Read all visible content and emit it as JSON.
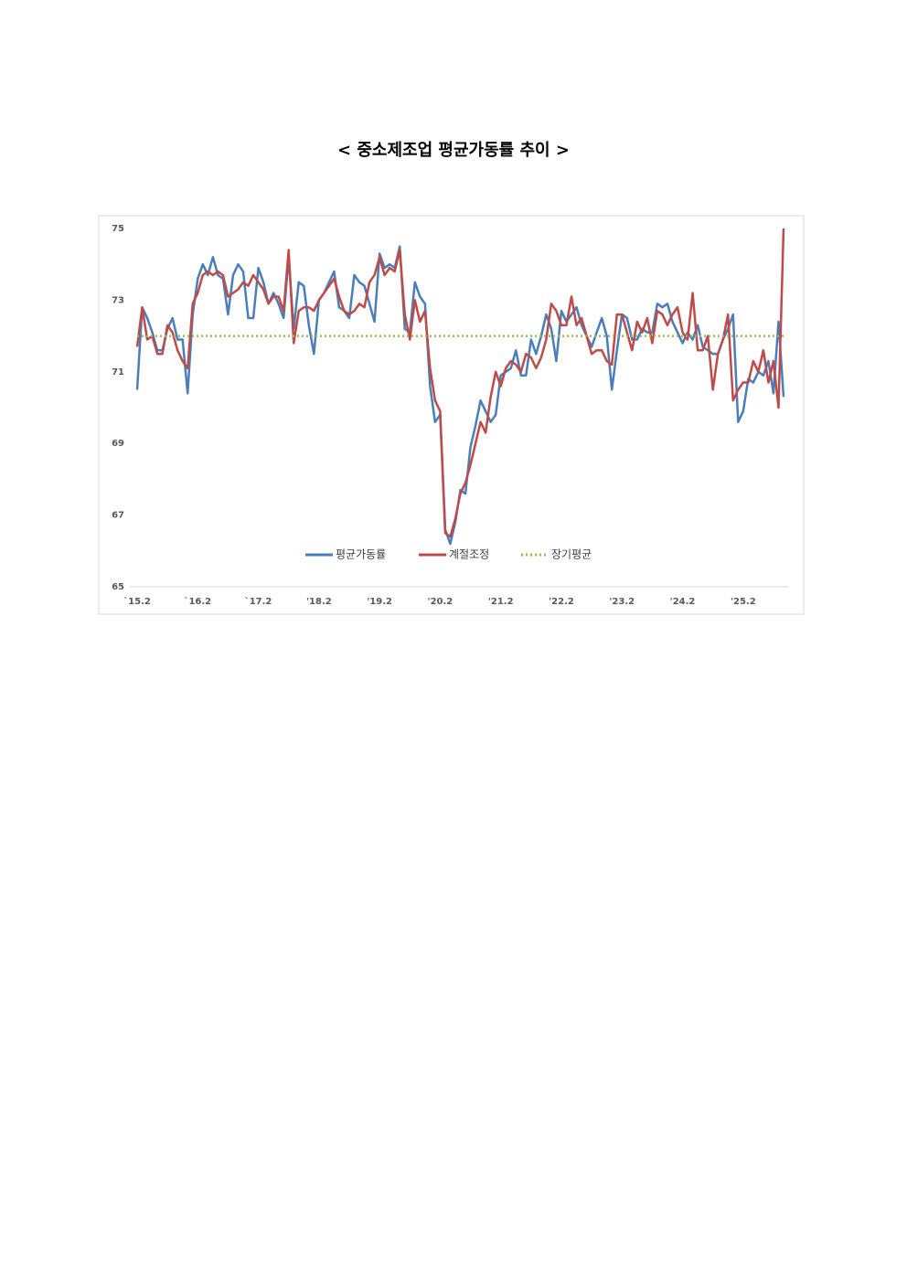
{
  "chart_data": {
    "type": "line",
    "title": "< 중소제조업 평균가동률 추이 >",
    "categories": [
      "`15.2",
      null,
      null,
      null,
      null,
      null,
      null,
      null,
      null,
      null,
      null,
      null,
      "`16.2",
      null,
      null,
      null,
      null,
      null,
      null,
      null,
      null,
      null,
      null,
      null,
      "`17.2",
      null,
      null,
      null,
      null,
      null,
      null,
      null,
      null,
      null,
      null,
      null,
      "'18.2",
      null,
      null,
      null,
      null,
      null,
      null,
      null,
      null,
      null,
      null,
      null,
      "'19.2",
      null,
      null,
      null,
      null,
      null,
      null,
      null,
      null,
      null,
      null,
      null,
      "'20.2",
      null,
      null,
      null,
      null,
      null,
      null,
      null,
      null,
      null,
      null,
      null,
      "'21.2",
      null,
      null,
      null,
      null,
      null,
      null,
      null,
      null,
      null,
      null,
      null,
      "'22.2",
      null,
      null,
      null,
      null,
      null,
      null,
      null,
      null,
      null,
      null,
      null,
      "'23.2",
      null,
      null,
      null,
      null,
      null,
      null,
      null,
      null,
      null,
      null,
      null,
      "'24.2",
      null,
      null,
      null,
      null,
      null,
      null,
      null,
      null,
      null,
      null,
      null,
      "'25.2",
      null,
      null,
      null,
      null,
      null,
      null,
      null,
      null
    ],
    "series": [
      {
        "name": "평균가동률",
        "color": "#4a7ebb",
        "values": [
          70.5,
          72.8,
          72.5,
          72.1,
          71.6,
          71.6,
          72.2,
          72.5,
          71.9,
          71.9,
          70.4,
          72.6,
          73.6,
          74.0,
          73.7,
          74.2,
          73.7,
          73.6,
          72.6,
          73.7,
          74.0,
          73.8,
          72.5,
          72.5,
          73.9,
          73.5,
          72.9,
          73.2,
          72.9,
          72.5,
          74.2,
          72.2,
          73.5,
          73.4,
          72.3,
          71.5,
          73.0,
          73.2,
          73.5,
          73.8,
          72.8,
          72.7,
          72.5,
          73.7,
          73.5,
          73.4,
          72.9,
          72.4,
          74.3,
          73.9,
          74.0,
          73.9,
          74.5,
          72.2,
          72.1,
          73.5,
          73.1,
          72.9,
          70.6,
          69.6,
          69.8,
          66.6,
          66.2,
          66.8,
          67.7,
          67.6,
          68.9,
          69.5,
          70.2,
          69.9,
          69.6,
          69.8,
          70.9,
          71.0,
          71.1,
          71.6,
          70.9,
          70.9,
          71.9,
          71.5,
          72.0,
          72.6,
          72.2,
          71.3,
          72.7,
          72.4,
          72.6,
          72.8,
          72.3,
          72.0,
          71.7,
          72.1,
          72.5,
          72.0,
          70.5,
          71.6,
          72.6,
          72.5,
          71.9,
          71.9,
          72.2,
          72.1,
          72.1,
          72.9,
          72.8,
          72.9,
          72.4,
          72.1,
          71.8,
          72.1,
          71.9,
          72.3,
          71.7,
          71.6,
          71.5,
          71.5,
          71.9,
          72.2,
          72.6,
          69.6,
          69.9,
          70.8,
          70.7,
          71.0,
          70.9,
          71.3,
          70.4,
          72.4,
          70.3
        ]
      },
      {
        "name": "계절조정",
        "color": "#be4b48",
        "values": [
          71.7,
          72.8,
          71.9,
          72.0,
          71.5,
          71.5,
          72.3,
          72.1,
          71.6,
          71.3,
          71.1,
          72.9,
          73.2,
          73.7,
          73.8,
          73.7,
          73.8,
          73.7,
          73.1,
          73.2,
          73.3,
          73.5,
          73.4,
          73.7,
          73.5,
          73.3,
          72.9,
          73.1,
          73.1,
          72.7,
          74.4,
          71.8,
          72.7,
          72.8,
          72.8,
          72.7,
          73.0,
          73.2,
          73.4,
          73.6,
          73.1,
          72.7,
          72.6,
          72.7,
          72.9,
          72.8,
          73.5,
          73.7,
          74.2,
          73.7,
          73.9,
          73.8,
          74.4,
          72.6,
          71.9,
          73.0,
          72.4,
          72.7,
          71.1,
          70.2,
          69.9,
          66.5,
          66.4,
          66.9,
          67.6,
          67.9,
          68.4,
          69.0,
          69.6,
          69.3,
          70.3,
          71.0,
          70.6,
          71.1,
          71.3,
          71.2,
          71.0,
          71.5,
          71.4,
          71.1,
          71.4,
          71.9,
          72.9,
          72.7,
          72.3,
          72.3,
          73.1,
          72.3,
          72.5,
          72.0,
          71.5,
          71.6,
          71.6,
          71.3,
          71.2,
          72.6,
          72.6,
          72.1,
          71.6,
          72.4,
          72.1,
          72.5,
          71.8,
          72.7,
          72.6,
          72.3,
          72.6,
          72.8,
          72.1,
          71.9,
          73.2,
          71.6,
          71.6,
          72.0,
          70.5,
          71.5,
          71.9,
          72.6,
          70.2,
          70.5,
          70.7,
          70.7,
          71.3,
          71.0,
          71.6,
          70.7,
          71.3,
          70.0,
          75.0
        ]
      },
      {
        "name": "장기평균",
        "color": "#9bbb59",
        "dashed": true,
        "values": [
          72,
          72,
          72,
          72,
          72,
          72,
          72,
          72,
          72,
          72,
          72,
          72,
          72,
          72,
          72,
          72,
          72,
          72,
          72,
          72,
          72,
          72,
          72,
          72,
          72,
          72,
          72,
          72,
          72,
          72,
          72,
          72,
          72,
          72,
          72,
          72,
          72,
          72,
          72,
          72,
          72,
          72,
          72,
          72,
          72,
          72,
          72,
          72,
          72,
          72,
          72,
          72,
          72,
          72,
          72,
          72,
          72,
          72,
          72,
          72,
          72,
          72,
          72,
          72,
          72,
          72,
          72,
          72,
          72,
          72,
          72,
          72,
          72,
          72,
          72,
          72,
          72,
          72,
          72,
          72,
          72,
          72,
          72,
          72,
          72,
          72,
          72,
          72,
          72,
          72,
          72,
          72,
          72,
          72,
          72,
          72,
          72,
          72,
          72,
          72,
          72,
          72,
          72,
          72,
          72,
          72,
          72,
          72,
          72,
          72,
          72,
          72,
          72,
          72,
          72,
          72,
          72,
          72,
          72,
          72,
          72,
          72,
          72,
          72,
          72,
          72,
          72,
          72,
          72
        ]
      }
    ],
    "ylim": [
      65,
      75
    ],
    "yticks": [
      65,
      67,
      69,
      71,
      73,
      75
    ],
    "grid": false,
    "legend": "bottom"
  }
}
